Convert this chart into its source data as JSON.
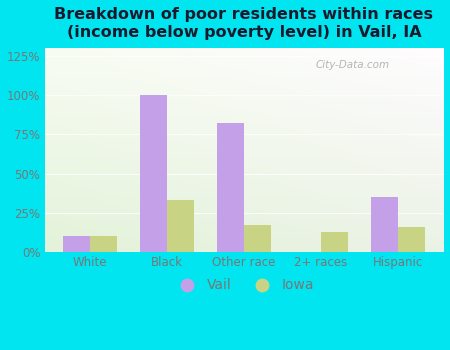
{
  "categories": [
    "White",
    "Black",
    "Other race",
    "2+ races",
    "Hispanic"
  ],
  "vail_values": [
    10,
    100,
    82,
    0,
    35
  ],
  "iowa_values": [
    10,
    33,
    17,
    13,
    16
  ],
  "vail_color": "#c4a0e8",
  "iowa_color": "#c8d484",
  "title": "Breakdown of poor residents within races\n(income below poverty level) in Vail, IA",
  "title_fontsize": 11.5,
  "title_fontweight": "bold",
  "title_color": "#1a1a2e",
  "ytick_labels": [
    "0%",
    "25%",
    "50%",
    "75%",
    "100%",
    "125%"
  ],
  "ytick_values": [
    0,
    25,
    50,
    75,
    100,
    125
  ],
  "ylim": [
    0,
    130
  ],
  "bar_width": 0.35,
  "background_outer": "#00e5f0",
  "legend_labels": [
    "Vail",
    "Iowa"
  ],
  "watermark": "City-Data.com",
  "tick_color": "#777777",
  "grid_color": "#e0e8d8"
}
